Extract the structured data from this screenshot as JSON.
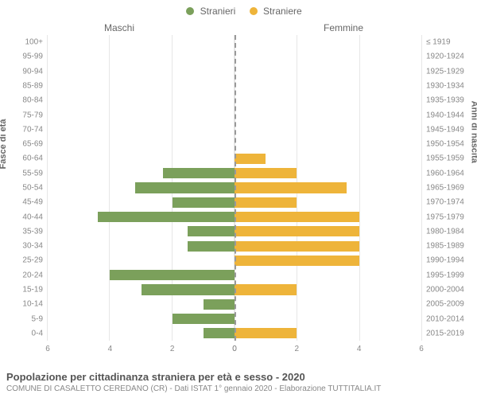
{
  "legend": {
    "male_label": "Stranieri",
    "female_label": "Straniere"
  },
  "headers": {
    "male": "Maschi",
    "female": "Femmine"
  },
  "axis_titles": {
    "left": "Fasce di età",
    "right": "Anni di nascita"
  },
  "colors": {
    "male": "#7ba05b",
    "female": "#eeb43a",
    "grid": "#e6e6e6",
    "centerline": "#999999",
    "text": "#666666",
    "tick": "#888888"
  },
  "fonts": {
    "legend": 12,
    "header": 12,
    "axis_title": 11,
    "tick": 10,
    "footer_title": 13,
    "footer_sub": 10
  },
  "xaxis": {
    "max": 6,
    "ticks": [
      0,
      2,
      4,
      6
    ]
  },
  "bar_height_ratio": 0.72,
  "rows": [
    {
      "age": "100+",
      "birth": "≤ 1919",
      "m": 0,
      "f": 0
    },
    {
      "age": "95-99",
      "birth": "1920-1924",
      "m": 0,
      "f": 0
    },
    {
      "age": "90-94",
      "birth": "1925-1929",
      "m": 0,
      "f": 0
    },
    {
      "age": "85-89",
      "birth": "1930-1934",
      "m": 0,
      "f": 0
    },
    {
      "age": "80-84",
      "birth": "1935-1939",
      "m": 0,
      "f": 0
    },
    {
      "age": "75-79",
      "birth": "1940-1944",
      "m": 0,
      "f": 0
    },
    {
      "age": "70-74",
      "birth": "1945-1949",
      "m": 0,
      "f": 0
    },
    {
      "age": "65-69",
      "birth": "1950-1954",
      "m": 0,
      "f": 0
    },
    {
      "age": "60-64",
      "birth": "1955-1959",
      "m": 0,
      "f": 1
    },
    {
      "age": "55-59",
      "birth": "1960-1964",
      "m": 2.3,
      "f": 2
    },
    {
      "age": "50-54",
      "birth": "1965-1969",
      "m": 3.2,
      "f": 3.6
    },
    {
      "age": "45-49",
      "birth": "1970-1974",
      "m": 2,
      "f": 2
    },
    {
      "age": "40-44",
      "birth": "1975-1979",
      "m": 4.4,
      "f": 4
    },
    {
      "age": "35-39",
      "birth": "1980-1984",
      "m": 1.5,
      "f": 4
    },
    {
      "age": "30-34",
      "birth": "1985-1989",
      "m": 1.5,
      "f": 4
    },
    {
      "age": "25-29",
      "birth": "1990-1994",
      "m": 0,
      "f": 4
    },
    {
      "age": "20-24",
      "birth": "1995-1999",
      "m": 4,
      "f": 0
    },
    {
      "age": "15-19",
      "birth": "2000-2004",
      "m": 3,
      "f": 2
    },
    {
      "age": "10-14",
      "birth": "2005-2009",
      "m": 1,
      "f": 0
    },
    {
      "age": "5-9",
      "birth": "2010-2014",
      "m": 2,
      "f": 0
    },
    {
      "age": "0-4",
      "birth": "2015-2019",
      "m": 1,
      "f": 2
    }
  ],
  "footer": {
    "title": "Popolazione per cittadinanza straniera per età e sesso - 2020",
    "sub": "COMUNE DI CASALETTO CEREDANO (CR) - Dati ISTAT 1° gennaio 2020 - Elaborazione TUTTITALIA.IT"
  }
}
